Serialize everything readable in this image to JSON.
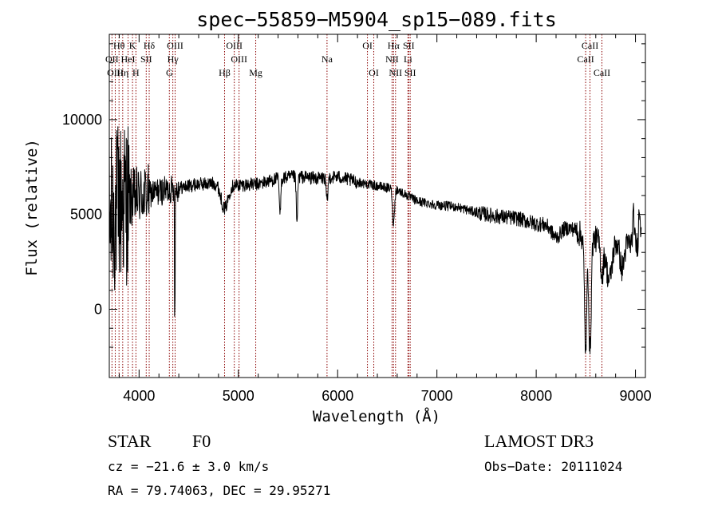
{
  "chart_data": {
    "type": "line",
    "title": "spec−55859−M5904_sp15−089.fits",
    "xlabel": "Wavelength (Å)",
    "ylabel": "Flux (relative)",
    "xlim": [
      3700,
      9100
    ],
    "ylim": [
      -3600,
      14500
    ],
    "x_ticks": [
      {
        "value": 4000,
        "label": "4000"
      },
      {
        "value": 5000,
        "label": "5000"
      },
      {
        "value": 6000,
        "label": "6000"
      },
      {
        "value": 7000,
        "label": "7000"
      },
      {
        "value": 8000,
        "label": "8000"
      },
      {
        "value": 9000,
        "label": "9000"
      }
    ],
    "y_ticks": [
      {
        "value": 0,
        "label": "0"
      },
      {
        "value": 5000,
        "label": "5000"
      },
      {
        "value": 10000,
        "label": "10000"
      }
    ],
    "line_color": "#000000",
    "marker_color": "#8b0000",
    "spectral_lines": [
      {
        "label": "Hθ",
        "wavelength": 3798,
        "row": 0
      },
      {
        "label": "K",
        "wavelength": 3934,
        "row": 0
      },
      {
        "label": "Hδ",
        "wavelength": 4102,
        "row": 0
      },
      {
        "label": "OIII",
        "wavelength": 4363,
        "row": 0
      },
      {
        "label": "OIII",
        "wavelength": 4959,
        "row": 0
      },
      {
        "label": "OI",
        "wavelength": 6300,
        "row": 0
      },
      {
        "label": "Hα",
        "wavelength": 6563,
        "row": 0
      },
      {
        "label": "SII",
        "wavelength": 6716,
        "row": 0
      },
      {
        "label": "CaII",
        "wavelength": 8542,
        "row": 0
      },
      {
        "label": "OII",
        "wavelength": 3727,
        "row": 1
      },
      {
        "label": "HeI",
        "wavelength": 3889,
        "row": 1
      },
      {
        "label": "SII",
        "wavelength": 4072,
        "row": 1
      },
      {
        "label": "Hγ",
        "wavelength": 4340,
        "row": 1
      },
      {
        "label": "OIII",
        "wavelength": 5007,
        "row": 1
      },
      {
        "label": "Na",
        "wavelength": 5893,
        "row": 1
      },
      {
        "label": "NII",
        "wavelength": 6548,
        "row": 1
      },
      {
        "label": "Li",
        "wavelength": 6708,
        "row": 1
      },
      {
        "label": "CaII",
        "wavelength": 8498,
        "row": 1
      },
      {
        "label": "OIII",
        "wavelength": 3760,
        "row": 2
      },
      {
        "label": "Hη",
        "wavelength": 3835,
        "row": 2
      },
      {
        "label": "H",
        "wavelength": 3968,
        "row": 2
      },
      {
        "label": "G",
        "wavelength": 4305,
        "row": 2
      },
      {
        "label": "Hβ",
        "wavelength": 4861,
        "row": 2
      },
      {
        "label": "Mg",
        "wavelength": 5175,
        "row": 2
      },
      {
        "label": "OI",
        "wavelength": 6364,
        "row": 2
      },
      {
        "label": "NII",
        "wavelength": 6583,
        "row": 2
      },
      {
        "label": "SII",
        "wavelength": 6731,
        "row": 2
      },
      {
        "label": "CaII",
        "wavelength": 8662,
        "row": 2
      }
    ],
    "continuum": [
      [
        3700,
        4500
      ],
      [
        3800,
        5600
      ],
      [
        3900,
        5800
      ],
      [
        4000,
        6000
      ],
      [
        4200,
        6200
      ],
      [
        4400,
        6400
      ],
      [
        4600,
        6600
      ],
      [
        4800,
        6650
      ],
      [
        5000,
        6550
      ],
      [
        5200,
        6600
      ],
      [
        5400,
        6900
      ],
      [
        5600,
        7000
      ],
      [
        5800,
        6900
      ],
      [
        6000,
        7000
      ],
      [
        6200,
        6700
      ],
      [
        6400,
        6500
      ],
      [
        6600,
        6300
      ],
      [
        6800,
        5700
      ],
      [
        7000,
        5500
      ],
      [
        7200,
        5400
      ],
      [
        7400,
        5100
      ],
      [
        7600,
        4900
      ],
      [
        7800,
        4800
      ],
      [
        8000,
        4500
      ],
      [
        8200,
        4400
      ],
      [
        8400,
        4200
      ],
      [
        8500,
        3600
      ],
      [
        8600,
        3700
      ],
      [
        8700,
        3600
      ],
      [
        8800,
        3600
      ],
      [
        9000,
        3400
      ],
      [
        9100,
        3500
      ]
    ],
    "features": [
      [
        4861,
        -1300,
        50
      ],
      [
        5420,
        -2000,
        10
      ],
      [
        5590,
        -2500,
        10
      ],
      [
        5893,
        -1300,
        12
      ],
      [
        6563,
        -1800,
        14
      ],
      [
        8200,
        -600,
        60
      ],
      [
        8498,
        -5800,
        16
      ],
      [
        8542,
        -6000,
        16
      ],
      [
        8662,
        -1800,
        20
      ],
      [
        8735,
        -2100,
        40
      ],
      [
        8865,
        -1400,
        30
      ],
      [
        8980,
        1500,
        12
      ],
      [
        9040,
        2000,
        10
      ],
      [
        9065,
        2000,
        10
      ]
    ]
  },
  "footer": {
    "object_class": "STAR",
    "subclass": "F0",
    "survey": "LAMOST DR3",
    "redshift": "cz = −21.6 ± 3.0 km/s",
    "obs_date": "Obs−Date: 20111024",
    "coords": "RA =  79.74063, DEC =  29.95271"
  }
}
